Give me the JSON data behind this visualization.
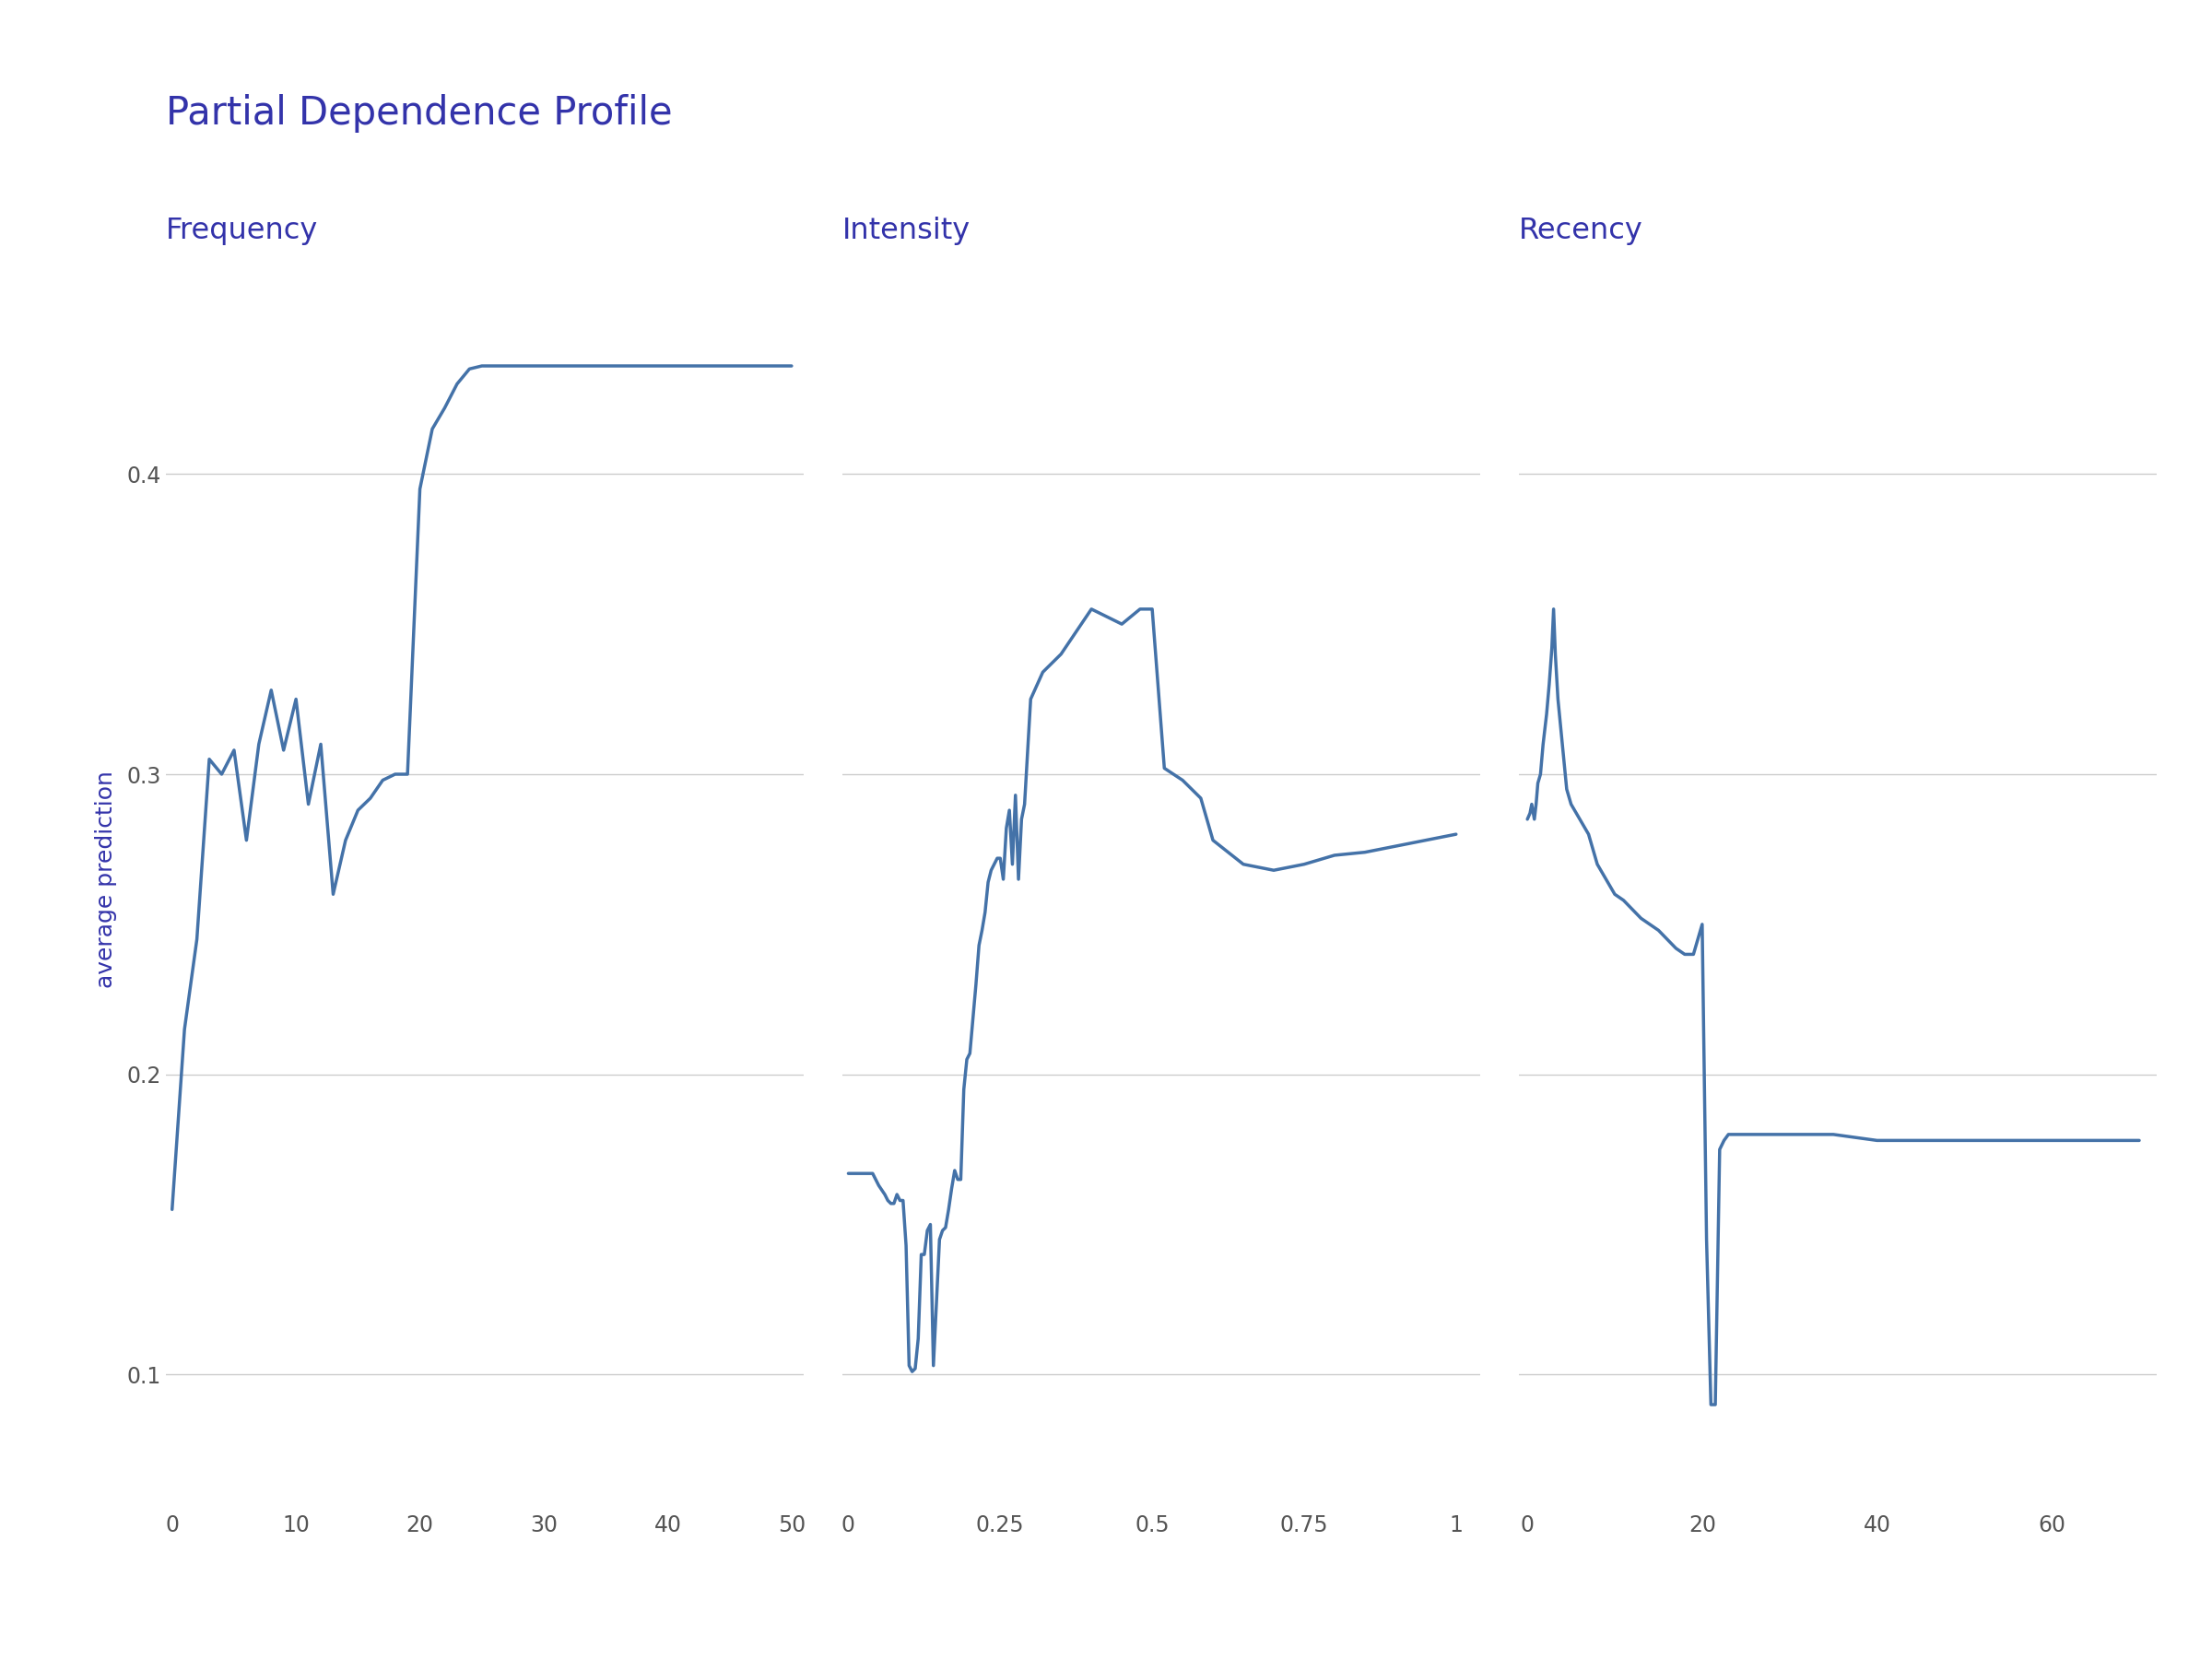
{
  "title": "Partial Dependence Profile",
  "title_color": "#3333aa",
  "title_fontsize": 30,
  "ylabel": "average prediction",
  "ylabel_color": "#3333aa",
  "ylabel_fontsize": 18,
  "background_color": "#ffffff",
  "line_color": "#4472a8",
  "line_width": 2.5,
  "grid_color": "#cccccc",
  "grid_linewidth": 1.0,
  "tick_color": "#555555",
  "tick_fontsize": 17,
  "subplot_titles": [
    "Frequency",
    "Intensity",
    "Recency"
  ],
  "subplot_title_color": "#3333aa",
  "subplot_title_fontsize": 23,
  "freq_x": [
    0,
    1,
    2,
    3,
    4,
    5,
    6,
    7,
    8,
    9,
    10,
    11,
    12,
    13,
    14,
    15,
    16,
    17,
    18,
    19,
    20,
    21,
    22,
    23,
    24,
    25,
    26,
    27,
    28,
    29,
    30,
    31,
    32,
    35,
    40,
    45,
    50
  ],
  "freq_y": [
    0.155,
    0.215,
    0.245,
    0.305,
    0.3,
    0.308,
    0.278,
    0.31,
    0.328,
    0.308,
    0.325,
    0.29,
    0.31,
    0.26,
    0.278,
    0.288,
    0.292,
    0.298,
    0.3,
    0.3,
    0.395,
    0.415,
    0.422,
    0.43,
    0.435,
    0.436,
    0.436,
    0.436,
    0.436,
    0.436,
    0.436,
    0.436,
    0.436,
    0.436,
    0.436,
    0.436,
    0.436
  ],
  "freq_xlim": [
    -0.5,
    51
  ],
  "freq_xticks": [
    0,
    10,
    20,
    30,
    40,
    50
  ],
  "int_x": [
    0.0,
    0.02,
    0.04,
    0.05,
    0.06,
    0.065,
    0.07,
    0.075,
    0.08,
    0.085,
    0.09,
    0.095,
    0.1,
    0.105,
    0.11,
    0.115,
    0.12,
    0.125,
    0.13,
    0.135,
    0.14,
    0.15,
    0.155,
    0.16,
    0.165,
    0.17,
    0.175,
    0.18,
    0.185,
    0.19,
    0.195,
    0.2,
    0.21,
    0.215,
    0.22,
    0.225,
    0.23,
    0.235,
    0.24,
    0.245,
    0.25,
    0.255,
    0.26,
    0.265,
    0.27,
    0.275,
    0.28,
    0.285,
    0.29,
    0.3,
    0.32,
    0.35,
    0.4,
    0.45,
    0.48,
    0.5,
    0.52,
    0.55,
    0.58,
    0.6,
    0.65,
    0.7,
    0.75,
    0.8,
    0.85,
    0.9,
    0.95,
    1.0
  ],
  "int_y": [
    0.167,
    0.167,
    0.167,
    0.163,
    0.16,
    0.158,
    0.157,
    0.157,
    0.16,
    0.158,
    0.158,
    0.143,
    0.103,
    0.101,
    0.102,
    0.112,
    0.14,
    0.14,
    0.148,
    0.15,
    0.103,
    0.145,
    0.148,
    0.149,
    0.155,
    0.162,
    0.168,
    0.165,
    0.165,
    0.195,
    0.205,
    0.207,
    0.23,
    0.243,
    0.248,
    0.254,
    0.264,
    0.268,
    0.27,
    0.272,
    0.272,
    0.265,
    0.282,
    0.288,
    0.27,
    0.293,
    0.265,
    0.285,
    0.29,
    0.325,
    0.334,
    0.34,
    0.355,
    0.35,
    0.355,
    0.355,
    0.302,
    0.298,
    0.292,
    0.278,
    0.27,
    0.268,
    0.27,
    0.273,
    0.274,
    0.276,
    0.278,
    0.28
  ],
  "int_xlim": [
    -0.01,
    1.04
  ],
  "int_xticks": [
    0.0,
    0.25,
    0.5,
    0.75,
    1.0
  ],
  "rec_x": [
    0,
    0.3,
    0.5,
    0.8,
    1.0,
    1.2,
    1.5,
    1.8,
    2.0,
    2.2,
    2.5,
    2.8,
    3.0,
    3.2,
    3.5,
    4.0,
    4.5,
    5.0,
    6.0,
    7.0,
    8.0,
    9.0,
    10.0,
    11.0,
    12.0,
    13.0,
    14.0,
    15.0,
    16.0,
    17.0,
    18.0,
    19.0,
    20.0,
    20.5,
    21.0,
    21.5,
    22.0,
    22.5,
    23.0,
    24.0,
    25.0,
    27.0,
    30.0,
    35.0,
    40.0,
    45.0,
    50.0,
    55.0,
    60.0,
    65.0,
    70.0
  ],
  "rec_y": [
    0.285,
    0.287,
    0.29,
    0.285,
    0.29,
    0.297,
    0.3,
    0.31,
    0.315,
    0.32,
    0.33,
    0.342,
    0.355,
    0.34,
    0.325,
    0.31,
    0.295,
    0.29,
    0.285,
    0.28,
    0.27,
    0.265,
    0.26,
    0.258,
    0.255,
    0.252,
    0.25,
    0.248,
    0.245,
    0.242,
    0.24,
    0.24,
    0.25,
    0.145,
    0.09,
    0.09,
    0.175,
    0.178,
    0.18,
    0.18,
    0.18,
    0.18,
    0.18,
    0.18,
    0.178,
    0.178,
    0.178,
    0.178,
    0.178,
    0.178,
    0.178
  ],
  "rec_xlim": [
    -1,
    72
  ],
  "rec_xticks": [
    0,
    20,
    40,
    60
  ],
  "ylim": [
    0.055,
    0.475
  ],
  "yticks": [
    0.1,
    0.2,
    0.3,
    0.4
  ]
}
